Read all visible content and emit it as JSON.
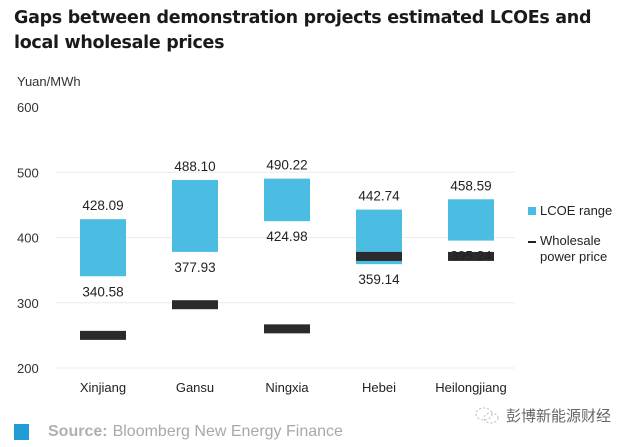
{
  "chart_data": {
    "type": "bar",
    "subtype": "floating-range-with-markers",
    "title": "Gaps between demonstration projects estimated LCOEs and local wholesale prices",
    "ylabel": "Yuan/MWh",
    "xlabel": "",
    "ylim": [
      200,
      600
    ],
    "yticks": [
      200,
      300,
      400,
      500,
      600
    ],
    "grid": true,
    "legend_position": "right",
    "categories": [
      "Xinjiang",
      "Gansu",
      "Ningxia",
      "Hebei",
      "Heilongjiang"
    ],
    "series": [
      {
        "name": "LCOE range",
        "color": "#4bbde3",
        "low": [
          340.58,
          377.93,
          424.98,
          359.14,
          395.24
        ],
        "high": [
          428.09,
          488.1,
          490.22,
          442.74,
          458.59
        ],
        "low_labels": [
          "340.58",
          "377.93",
          "424.98",
          "359.14",
          "395.24"
        ],
        "high_labels": [
          "428.09",
          "488.10",
          "490.22",
          "442.74",
          "458.59"
        ]
      },
      {
        "name": "Wholesale power price",
        "color": "#2b2b2b",
        "values": [
          250,
          297,
          260,
          371,
          371
        ]
      }
    ]
  },
  "legend": {
    "lcoe_label": "LCOE range",
    "wholesale_line1": "Wholesale",
    "wholesale_line2": "power price"
  },
  "footer": {
    "source_label": "Source:",
    "source_text": "Bloomberg New Energy Finance",
    "watermark": "彭博新能源财经"
  }
}
